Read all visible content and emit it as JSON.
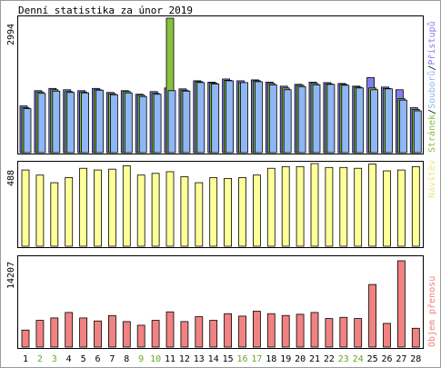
{
  "title": "Denní statistika za únor 2019",
  "colors": {
    "hits": "#7f7ff0",
    "files": "#8fb6f5",
    "pages": "#88c040",
    "visits": "#ffff99",
    "volume": "#f08282",
    "weekday": "#000000",
    "weekend": "#66aa22",
    "pages_label": "#88c040",
    "files_label": "#8fb6f5",
    "hits_label": "#7f7ff0",
    "visits_label": "#f0e688",
    "volume_label": "#f08282"
  },
  "chart_data": [
    {
      "type": "bar",
      "name": "requests",
      "ymax_label": "2994",
      "ylim": [
        0,
        2994
      ],
      "legend": [
        "Stránek",
        "Souborů",
        "Přístupů"
      ],
      "categories": [
        "1",
        "2",
        "3",
        "4",
        "5",
        "6",
        "7",
        "8",
        "9",
        "10",
        "11",
        "12",
        "13",
        "14",
        "15",
        "16",
        "17",
        "18",
        "19",
        "20",
        "21",
        "22",
        "23",
        "24",
        "25",
        "26",
        "27",
        "28"
      ],
      "weekend": [
        "2",
        "3",
        "9",
        "10",
        "16",
        "17",
        "23",
        "24"
      ],
      "series": [
        {
          "name": "Přístupů",
          "color_key": "hits",
          "values": [
            1040,
            1380,
            1430,
            1400,
            1380,
            1430,
            1340,
            1380,
            1300,
            1360,
            1440,
            1420,
            1600,
            1570,
            1640,
            1600,
            1620,
            1570,
            1480,
            1520,
            1570,
            1560,
            1540,
            1480,
            1670,
            1460,
            1400,
            1000
          ]
        },
        {
          "name": "Souborů",
          "color_key": "files",
          "values": [
            980,
            1320,
            1370,
            1340,
            1330,
            1390,
            1290,
            1330,
            1250,
            1300,
            1380,
            1370,
            1560,
            1530,
            1600,
            1560,
            1580,
            1510,
            1400,
            1470,
            1510,
            1520,
            1500,
            1440,
            1400,
            1420,
            1170,
            930
          ]
        },
        {
          "name": "Stránek",
          "color_key": "pages",
          "values": [
            1000,
            1350,
            1400,
            1360,
            1350,
            1400,
            1310,
            1360,
            1280,
            1320,
            2994,
            1390,
            1580,
            1550,
            1610,
            1560,
            1600,
            1540,
            1440,
            1500,
            1540,
            1530,
            1520,
            1460,
            1440,
            1430,
            1200,
            960
          ]
        }
      ]
    },
    {
      "type": "bar",
      "name": "visits",
      "ymax_label": "488",
      "ylim": [
        0,
        488
      ],
      "legend": [
        "Návštěv"
      ],
      "categories": [
        "1",
        "2",
        "3",
        "4",
        "5",
        "6",
        "7",
        "8",
        "9",
        "10",
        "11",
        "12",
        "13",
        "14",
        "15",
        "16",
        "17",
        "18",
        "19",
        "20",
        "21",
        "22",
        "23",
        "24",
        "25",
        "26",
        "27",
        "28"
      ],
      "values": [
        450,
        420,
        375,
        405,
        460,
        450,
        455,
        475,
        420,
        430,
        440,
        410,
        375,
        405,
        400,
        405,
        420,
        460,
        470,
        470,
        488,
        465,
        465,
        460,
        485,
        445,
        450,
        470
      ]
    },
    {
      "type": "bar",
      "name": "volume",
      "ymax_label": "14207",
      "ylim": [
        0,
        14207
      ],
      "legend": [
        "Objem přenosu"
      ],
      "categories": [
        "1",
        "2",
        "3",
        "4",
        "5",
        "6",
        "7",
        "8",
        "9",
        "10",
        "11",
        "12",
        "13",
        "14",
        "15",
        "16",
        "17",
        "18",
        "19",
        "20",
        "21",
        "22",
        "23",
        "24",
        "25",
        "26",
        "27",
        "28"
      ],
      "values": [
        2800,
        4400,
        4800,
        5700,
        4800,
        4300,
        5200,
        4200,
        3600,
        4400,
        5800,
        4200,
        5000,
        4400,
        5500,
        5100,
        5900,
        5500,
        5200,
        5400,
        5700,
        4700,
        4900,
        4700,
        10300,
        3900,
        14207,
        3100
      ]
    }
  ]
}
